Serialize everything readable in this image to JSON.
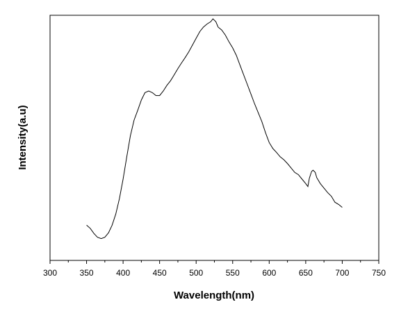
{
  "chart_data": {
    "type": "line",
    "title": "",
    "xlabel": "Wavelength(nm)",
    "ylabel": "Intensity(a.u)",
    "xlim": [
      300,
      750
    ],
    "ylim": [
      0,
      1
    ],
    "y_ticks_shown": false,
    "grid": false,
    "legend": "none",
    "x_ticks": [
      300,
      350,
      400,
      450,
      500,
      550,
      600,
      650,
      700,
      750
    ],
    "series": [
      {
        "color": "#000000",
        "x": [
          350,
          355,
          360,
          365,
          370,
          375,
          380,
          385,
          390,
          395,
          400,
          405,
          410,
          415,
          420,
          425,
          430,
          435,
          440,
          445,
          450,
          455,
          460,
          465,
          470,
          475,
          480,
          485,
          490,
          495,
          500,
          505,
          510,
          515,
          520,
          523,
          527,
          530,
          535,
          540,
          545,
          550,
          555,
          560,
          565,
          570,
          575,
          580,
          585,
          590,
          595,
          600,
          605,
          610,
          615,
          620,
          625,
          630,
          635,
          640,
          645,
          650,
          653,
          655,
          658,
          660,
          663,
          665,
          670,
          675,
          680,
          685,
          690,
          695,
          700
        ],
        "y": [
          0.117,
          0.103,
          0.08,
          0.063,
          0.057,
          0.063,
          0.083,
          0.117,
          0.167,
          0.237,
          0.323,
          0.423,
          0.517,
          0.587,
          0.63,
          0.677,
          0.71,
          0.717,
          0.71,
          0.697,
          0.697,
          0.717,
          0.743,
          0.763,
          0.79,
          0.817,
          0.843,
          0.867,
          0.893,
          0.923,
          0.953,
          0.983,
          1.003,
          1.017,
          1.027,
          1.04,
          1.027,
          1.003,
          0.99,
          0.967,
          0.937,
          0.91,
          0.877,
          0.833,
          0.79,
          0.747,
          0.703,
          0.66,
          0.62,
          0.58,
          0.53,
          0.487,
          0.46,
          0.443,
          0.423,
          0.41,
          0.393,
          0.373,
          0.353,
          0.343,
          0.323,
          0.303,
          0.29,
          0.327,
          0.357,
          0.363,
          0.353,
          0.33,
          0.303,
          0.283,
          0.263,
          0.247,
          0.22,
          0.21,
          0.197
        ]
      }
    ]
  }
}
